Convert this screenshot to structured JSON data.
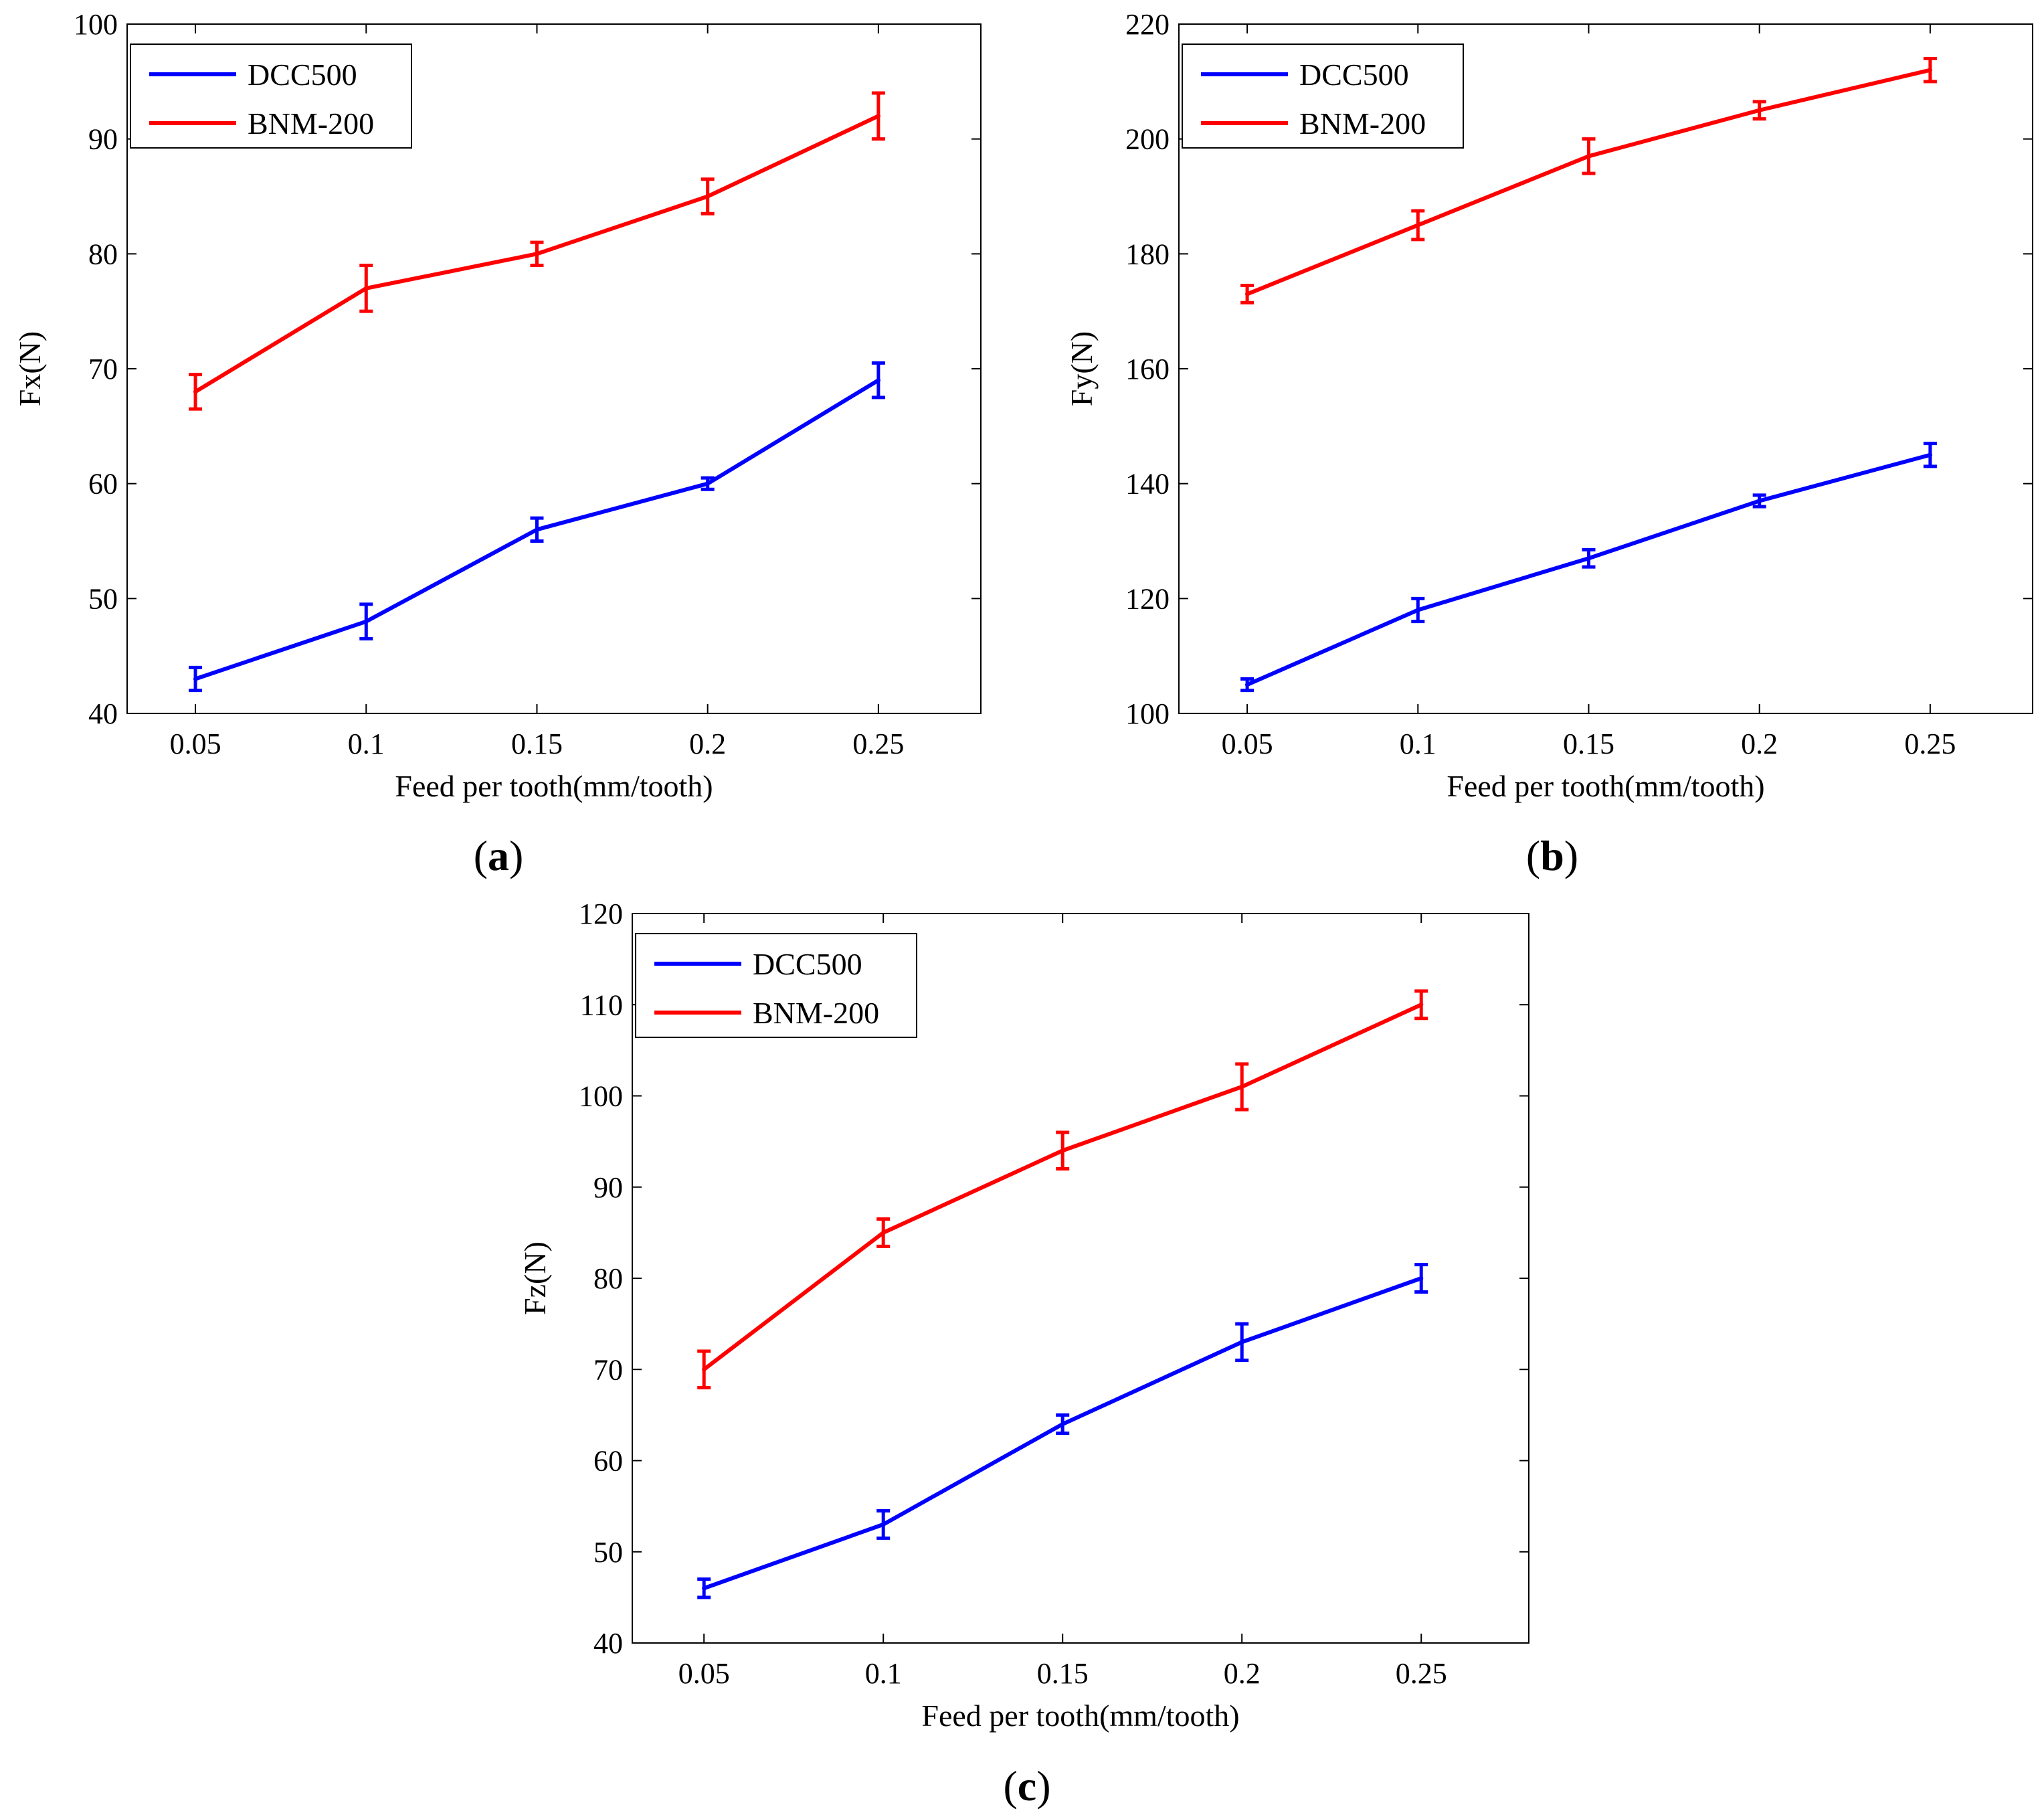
{
  "figure": {
    "panel_captions": [
      {
        "open": "(",
        "letter": "a",
        "close": ")"
      },
      {
        "open": "(",
        "letter": "b",
        "close": ")"
      },
      {
        "open": "(",
        "letter": "c",
        "close": ")"
      }
    ]
  },
  "chart_data": [
    {
      "type": "line",
      "panel": "a",
      "title": "",
      "xlabel": "Feed per tooth(mm/tooth)",
      "ylabel": "Fx(N)",
      "x": [
        0.05,
        0.1,
        0.15,
        0.2,
        0.25
      ],
      "xticks": [
        "0.05",
        "0.1",
        "0.15",
        "0.2",
        "0.25"
      ],
      "xlim": [
        0.03,
        0.28
      ],
      "ylim": [
        40,
        100
      ],
      "yticks": [
        40,
        50,
        60,
        70,
        80,
        90,
        100
      ],
      "legend_position": "top-left",
      "series": [
        {
          "name": "DCC500",
          "color": "#0000ff",
          "values": [
            43,
            48,
            56,
            60,
            69
          ],
          "errors": [
            1.0,
            1.5,
            1.0,
            0.5,
            1.5
          ]
        },
        {
          "name": "BNM-200",
          "color": "#ff0000",
          "values": [
            68,
            77,
            80,
            85,
            92
          ],
          "errors": [
            1.5,
            2.0,
            1.0,
            1.5,
            2.0
          ]
        }
      ]
    },
    {
      "type": "line",
      "panel": "b",
      "title": "",
      "xlabel": "Feed per tooth(mm/tooth)",
      "ylabel": "Fy(N)",
      "x": [
        0.05,
        0.1,
        0.15,
        0.2,
        0.25
      ],
      "xticks": [
        "0.05",
        "0.1",
        "0.15",
        "0.2",
        "0.25"
      ],
      "xlim": [
        0.03,
        0.28
      ],
      "ylim": [
        100,
        220
      ],
      "yticks": [
        100,
        120,
        140,
        160,
        180,
        200,
        220
      ],
      "legend_position": "top-left",
      "series": [
        {
          "name": "DCC500",
          "color": "#0000ff",
          "values": [
            105,
            118,
            127,
            137,
            145
          ],
          "errors": [
            1.0,
            2.0,
            1.5,
            1.0,
            2.0
          ]
        },
        {
          "name": "BNM-200",
          "color": "#ff0000",
          "values": [
            173,
            185,
            197,
            205,
            212
          ],
          "errors": [
            1.5,
            2.5,
            3.0,
            1.5,
            2.0
          ]
        }
      ]
    },
    {
      "type": "line",
      "panel": "c",
      "title": "",
      "xlabel": "Feed per tooth(mm/tooth)",
      "ylabel": "Fz(N)",
      "x": [
        0.05,
        0.1,
        0.15,
        0.2,
        0.25
      ],
      "xticks": [
        "0.05",
        "0.1",
        "0.15",
        "0.2",
        "0.25"
      ],
      "xlim": [
        0.03,
        0.28
      ],
      "ylim": [
        40,
        120
      ],
      "yticks": [
        40,
        50,
        60,
        70,
        80,
        90,
        100,
        110,
        120
      ],
      "legend_position": "top-left",
      "series": [
        {
          "name": "DCC500",
          "color": "#0000ff",
          "values": [
            46,
            53,
            64,
            73,
            80
          ],
          "errors": [
            1.0,
            1.5,
            1.0,
            2.0,
            1.5
          ]
        },
        {
          "name": "BNM-200",
          "color": "#ff0000",
          "values": [
            70,
            85,
            94,
            101,
            110
          ],
          "errors": [
            2.0,
            1.5,
            2.0,
            2.5,
            1.5
          ]
        }
      ]
    }
  ]
}
